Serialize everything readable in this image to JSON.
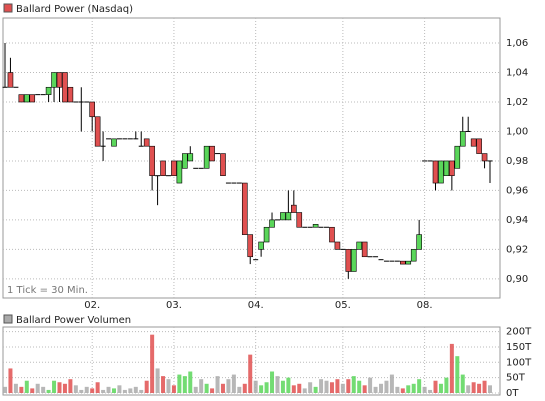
{
  "chart_data": [
    {
      "type": "candlestick",
      "title": "Ballard Power (Nasdaq)",
      "annotation": "1 Tick = 30 Min.",
      "up_color": "#5ad65a",
      "down_color": "#e05050",
      "flat_color": "#000000",
      "grid": true,
      "categories": [
        null,
        null,
        null,
        null,
        null,
        null,
        null,
        null,
        null,
        null,
        null,
        null,
        null,
        null,
        null,
        null,
        "02.",
        null,
        null,
        null,
        null,
        null,
        null,
        null,
        null,
        null,
        null,
        null,
        null,
        null,
        null,
        "03.",
        null,
        null,
        null,
        null,
        null,
        null,
        null,
        null,
        null,
        null,
        null,
        null,
        null,
        null,
        "04.",
        null,
        null,
        null,
        null,
        null,
        null,
        null,
        null,
        null,
        null,
        null,
        null,
        null,
        null,
        null,
        "05.",
        null,
        null,
        null,
        null,
        null,
        null,
        null,
        null,
        null,
        null,
        null,
        null,
        null,
        null,
        "08.",
        null,
        null,
        null,
        null,
        null,
        null,
        null,
        null,
        null,
        null,
        null,
        null
      ],
      "open": [
        1.03,
        1.04,
        1.03,
        1.025,
        1.02,
        1.025,
        1.025,
        1.025,
        1.025,
        1.03,
        1.04,
        1.04,
        1.03,
        1.02,
        1.02,
        1.02,
        1.02,
        1.01,
        0.99,
        0.995,
        0.99,
        0.995,
        0.995,
        0.995,
        0.995,
        0.99,
        0.995,
        0.99,
        0.97,
        0.98,
        0.97,
        0.98,
        0.965,
        0.975,
        0.98,
        0.975,
        0.975,
        0.975,
        0.99,
        0.985,
        0.985,
        0.965,
        0.965,
        0.965,
        0.965,
        0.93,
        0.913,
        0.92,
        0.925,
        0.935,
        0.94,
        0.94,
        0.94,
        0.95,
        0.945,
        0.935,
        0.935,
        0.935,
        0.935,
        0.935,
        0.935,
        0.925,
        0.92,
        0.92,
        0.905,
        0.92,
        0.925,
        0.915,
        0.915,
        0.913,
        0.912,
        0.912,
        0.912,
        0.912,
        0.91,
        0.912,
        0.92,
        0.98,
        0.98,
        0.98,
        0.965,
        0.97,
        0.98,
        0.975,
        0.99,
        1.0,
        0.995,
        0.995,
        0.985,
        0.98
      ],
      "high": [
        1.06,
        1.05,
        1.03,
        1.025,
        1.025,
        1.025,
        1.025,
        1.025,
        1.03,
        1.04,
        1.04,
        1.04,
        1.03,
        1.02,
        1.03,
        1.02,
        1.02,
        1.01,
        1.0,
        0.995,
        0.995,
        0.995,
        0.995,
        0.995,
        1.0,
        1.0,
        0.995,
        0.99,
        0.97,
        0.98,
        0.97,
        0.98,
        0.98,
        0.985,
        0.99,
        0.975,
        0.975,
        0.99,
        0.99,
        0.985,
        0.985,
        0.965,
        0.965,
        0.965,
        0.965,
        0.93,
        0.913,
        0.925,
        0.935,
        0.945,
        0.94,
        0.945,
        0.96,
        0.96,
        0.945,
        0.935,
        0.935,
        0.937,
        0.935,
        0.935,
        0.935,
        0.925,
        0.92,
        0.92,
        0.92,
        0.925,
        0.925,
        0.915,
        0.915,
        0.913,
        0.912,
        0.912,
        0.912,
        0.912,
        0.912,
        0.92,
        0.94,
        0.98,
        0.98,
        0.98,
        0.98,
        0.98,
        0.98,
        0.99,
        1.01,
        1.01,
        0.995,
        0.995,
        0.985,
        0.98
      ],
      "low": [
        1.03,
        1.03,
        1.03,
        1.02,
        1.02,
        1.02,
        1.025,
        1.025,
        1.02,
        1.02,
        1.02,
        1.02,
        1.02,
        1.02,
        1.0,
        1.02,
        1.0,
        0.99,
        0.98,
        0.995,
        0.99,
        0.995,
        0.995,
        0.995,
        0.995,
        0.99,
        0.99,
        0.96,
        0.95,
        0.97,
        0.97,
        0.97,
        0.965,
        0.975,
        0.98,
        0.975,
        0.975,
        0.975,
        0.98,
        0.985,
        0.97,
        0.965,
        0.965,
        0.965,
        0.93,
        0.91,
        0.913,
        0.915,
        0.925,
        0.935,
        0.94,
        0.94,
        0.94,
        0.945,
        0.935,
        0.935,
        0.935,
        0.935,
        0.935,
        0.935,
        0.925,
        0.92,
        0.92,
        0.9,
        0.905,
        0.92,
        0.915,
        0.915,
        0.915,
        0.913,
        0.912,
        0.912,
        0.912,
        0.91,
        0.91,
        0.912,
        0.92,
        0.98,
        0.98,
        0.96,
        0.965,
        0.97,
        0.96,
        0.975,
        0.99,
        1.0,
        0.99,
        0.985,
        0.975,
        0.965
      ],
      "close": [
        1.03,
        1.03,
        1.03,
        1.02,
        1.025,
        1.02,
        1.025,
        1.025,
        1.03,
        1.04,
        1.03,
        1.02,
        1.02,
        1.02,
        1.02,
        1.02,
        1.01,
        0.99,
        0.99,
        0.995,
        0.995,
        0.995,
        0.995,
        0.995,
        0.995,
        0.99,
        0.99,
        0.97,
        0.97,
        0.97,
        0.97,
        0.97,
        0.98,
        0.985,
        0.985,
        0.975,
        0.975,
        0.99,
        0.98,
        0.985,
        0.97,
        0.965,
        0.965,
        0.965,
        0.93,
        0.915,
        0.913,
        0.925,
        0.935,
        0.94,
        0.94,
        0.945,
        0.945,
        0.945,
        0.935,
        0.935,
        0.935,
        0.937,
        0.935,
        0.935,
        0.925,
        0.92,
        0.92,
        0.905,
        0.92,
        0.925,
        0.915,
        0.915,
        0.915,
        0.913,
        0.912,
        0.912,
        0.912,
        0.91,
        0.912,
        0.92,
        0.93,
        0.98,
        0.98,
        0.965,
        0.98,
        0.98,
        0.97,
        0.99,
        1.0,
        1.0,
        0.99,
        0.985,
        0.98,
        0.98
      ],
      "ylim": [
        0.887,
        1.077
      ],
      "yticks": [
        {
          "value": 0.9,
          "label": "0,90"
        },
        {
          "value": 0.92,
          "label": "0,92"
        },
        {
          "value": 0.94,
          "label": "0,94"
        },
        {
          "value": 0.96,
          "label": "0,96"
        },
        {
          "value": 0.98,
          "label": "0,98"
        },
        {
          "value": 1.0,
          "label": "1,00"
        },
        {
          "value": 1.02,
          "label": "1,02"
        },
        {
          "value": 1.04,
          "label": "1,04"
        },
        {
          "value": 1.06,
          "label": "1,06"
        }
      ]
    },
    {
      "type": "bar",
      "title": "Ballard Power Volumen",
      "color": "#aaaaaa",
      "grid": true,
      "values": [
        20,
        80,
        30,
        20,
        40,
        15,
        30,
        20,
        10,
        40,
        35,
        30,
        45,
        25,
        10,
        20,
        15,
        35,
        10,
        20,
        15,
        25,
        10,
        15,
        20,
        10,
        40,
        190,
        80,
        55,
        45,
        25,
        60,
        55,
        70,
        20,
        45,
        30,
        15,
        55,
        30,
        45,
        60,
        20,
        30,
        125,
        40,
        25,
        35,
        70,
        55,
        40,
        50,
        25,
        30,
        15,
        35,
        20,
        45,
        40,
        35,
        45,
        30,
        45,
        55,
        40,
        25,
        50,
        20,
        30,
        40,
        60,
        20,
        15,
        25,
        30,
        45,
        20,
        10,
        40,
        30,
        50,
        160,
        120,
        60,
        25,
        35,
        30,
        40,
        25
      ],
      "ylim": [
        0,
        215
      ],
      "yticks": [
        {
          "value": 0,
          "label": "0T"
        },
        {
          "value": 50,
          "label": "50T"
        },
        {
          "value": 100,
          "label": "100T"
        },
        {
          "value": 150,
          "label": "150T"
        },
        {
          "value": 200,
          "label": "200T"
        }
      ]
    }
  ]
}
